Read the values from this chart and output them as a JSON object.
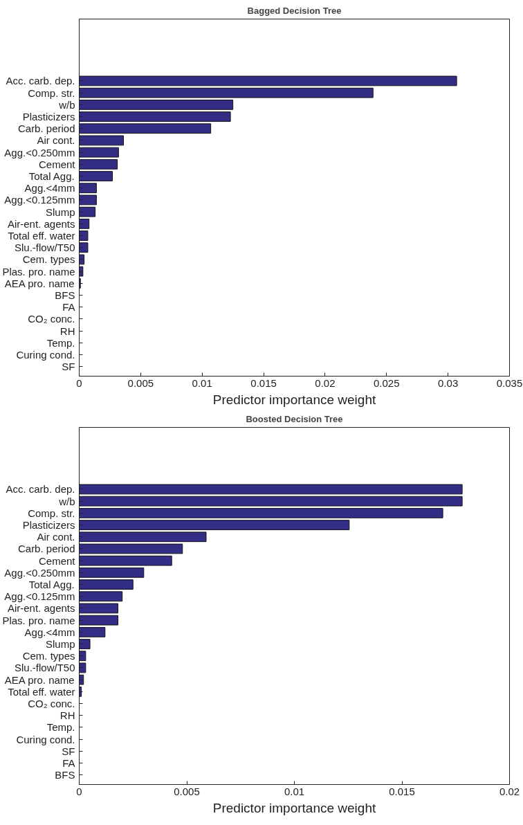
{
  "chart_data": [
    {
      "type": "bar",
      "orientation": "horizontal",
      "title": "Bagged Decision Tree",
      "xlabel": "Predictor importance weight",
      "categories": [
        "Acc. carb. dep.",
        "Comp. str.",
        "w/b",
        "Plasticizers",
        "Carb. period",
        "Air cont.",
        "Agg.<0.250mm",
        "Cement",
        "Total Agg.",
        "Agg.<4mm",
        "Agg.<0.125mm",
        "Slump",
        "Air-ent. agents",
        "Total eff. water",
        "Slu.-flow/T50",
        "Cem. types",
        "Plas. pro. name",
        "AEA pro. name",
        "BFS",
        "FA",
        "CO₂ conc.",
        "RH",
        "Temp.",
        "Curing cond.",
        "SF"
      ],
      "values": [
        0.0307,
        0.0239,
        0.0125,
        0.0123,
        0.0107,
        0.0036,
        0.0032,
        0.0031,
        0.0027,
        0.0014,
        0.0014,
        0.0013,
        0.0008,
        0.0007,
        0.0007,
        0.0004,
        0.0003,
        0.0001,
        0,
        0,
        0,
        0,
        0,
        0,
        0
      ],
      "color": "#342d85",
      "xlim": [
        0,
        0.035
      ],
      "xticks": [
        0,
        0.005,
        0.01,
        0.015,
        0.02,
        0.025,
        0.03,
        0.035
      ],
      "grid": false
    },
    {
      "type": "bar",
      "orientation": "horizontal",
      "title": "Boosted Decision Tree",
      "xlabel": "Predictor importance weight",
      "categories": [
        "Acc. carb. dep.",
        "w/b",
        "Comp. str.",
        "Plasticizers",
        "Air cont.",
        "Carb. period",
        "Cement",
        "Agg.<0.250mm",
        "Total Agg.",
        "Agg.<0.125mm",
        "Air-ent. agents",
        "Plas. pro. name",
        "Agg.<4mm",
        "Slump",
        "Cem. types",
        "Slu.-flow/T50",
        "AEA pro. name",
        "Total eff. water",
        "CO₂ conc.",
        "RH",
        "Temp.",
        "Curing cond.",
        "SF",
        "FA",
        "BFS"
      ],
      "values": [
        0.0178,
        0.0178,
        0.0169,
        0.01255,
        0.0059,
        0.0048,
        0.0043,
        0.003,
        0.0025,
        0.002,
        0.0018,
        0.0018,
        0.0012,
        0.0005,
        0.0003,
        0.0003,
        0.0002,
        0.0001,
        0,
        0,
        0,
        0,
        0,
        0,
        0
      ],
      "color": "#342d85",
      "xlim": [
        0,
        0.02
      ],
      "xticks": [
        0,
        0.005,
        0.01,
        0.015,
        0.02
      ],
      "grid": false
    }
  ]
}
